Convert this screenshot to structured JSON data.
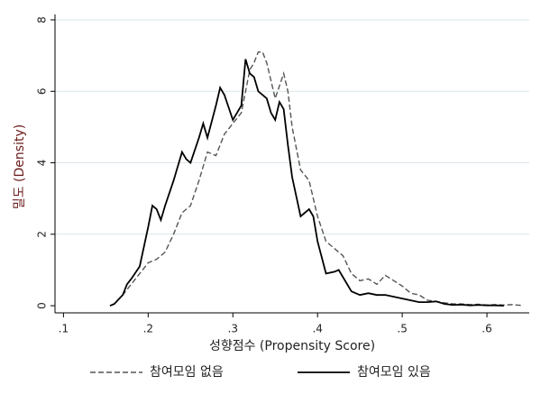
{
  "chart_data": {
    "type": "line",
    "x_label": "성향점수 (Propensity Score)",
    "y_label": "밀도 (Density)",
    "xlim": [
      0.09,
      0.65
    ],
    "ylim": [
      -0.2,
      8
    ],
    "xticks": [
      {
        "value": 0.1,
        "label": ".1"
      },
      {
        "value": 0.2,
        "label": ".2"
      },
      {
        "value": 0.3,
        "label": ".3"
      },
      {
        "value": 0.4,
        "label": ".4"
      },
      {
        "value": 0.5,
        "label": ".5"
      },
      {
        "value": 0.6,
        "label": ".6"
      }
    ],
    "yticks": [
      0,
      2,
      4,
      6,
      8
    ],
    "grid": true,
    "legend": "bottom",
    "series": [
      {
        "name": "참여모임 없음",
        "color": "#555555",
        "dash": "dashed",
        "x": [
          0.155,
          0.16,
          0.17,
          0.18,
          0.19,
          0.2,
          0.21,
          0.22,
          0.23,
          0.24,
          0.25,
          0.26,
          0.27,
          0.28,
          0.29,
          0.3,
          0.31,
          0.32,
          0.325,
          0.33,
          0.335,
          0.34,
          0.35,
          0.36,
          0.365,
          0.37,
          0.38,
          0.39,
          0.4,
          0.41,
          0.42,
          0.43,
          0.44,
          0.45,
          0.46,
          0.47,
          0.48,
          0.49,
          0.5,
          0.51,
          0.52,
          0.53,
          0.54,
          0.55,
          0.56,
          0.57,
          0.58,
          0.59,
          0.6,
          0.61,
          0.62,
          0.63,
          0.64
        ],
        "values": [
          0,
          0.05,
          0.3,
          0.6,
          0.9,
          1.2,
          1.3,
          1.5,
          2.0,
          2.6,
          2.8,
          3.5,
          4.3,
          4.2,
          4.8,
          5.1,
          5.4,
          6.6,
          6.8,
          7.1,
          7.1,
          6.8,
          5.8,
          6.5,
          6.0,
          5.0,
          3.8,
          3.5,
          2.5,
          1.8,
          1.6,
          1.4,
          0.9,
          0.7,
          0.75,
          0.6,
          0.85,
          0.7,
          0.55,
          0.35,
          0.3,
          0.15,
          0.12,
          0.08,
          0.05,
          0.05,
          0.03,
          0.04,
          0.02,
          0.03,
          0.02,
          0.03,
          0.01
        ]
      },
      {
        "name": "참여모임 있음",
        "color": "#000000",
        "dash": "solid",
        "x": [
          0.155,
          0.16,
          0.17,
          0.175,
          0.18,
          0.19,
          0.2,
          0.205,
          0.21,
          0.215,
          0.22,
          0.23,
          0.24,
          0.245,
          0.25,
          0.26,
          0.265,
          0.27,
          0.28,
          0.285,
          0.29,
          0.3,
          0.31,
          0.315,
          0.32,
          0.325,
          0.33,
          0.34,
          0.345,
          0.35,
          0.355,
          0.36,
          0.365,
          0.37,
          0.38,
          0.39,
          0.395,
          0.4,
          0.41,
          0.42,
          0.425,
          0.43,
          0.44,
          0.45,
          0.46,
          0.47,
          0.48,
          0.49,
          0.5,
          0.51,
          0.52,
          0.53,
          0.54,
          0.55,
          0.56,
          0.57,
          0.58,
          0.59,
          0.6,
          0.61,
          0.62
        ],
        "values": [
          0,
          0.05,
          0.3,
          0.6,
          0.75,
          1.1,
          2.2,
          2.8,
          2.7,
          2.4,
          2.8,
          3.5,
          4.3,
          4.1,
          4.0,
          4.7,
          5.1,
          4.7,
          5.6,
          6.1,
          5.9,
          5.2,
          5.6,
          6.9,
          6.5,
          6.4,
          6.0,
          5.8,
          5.4,
          5.2,
          5.7,
          5.5,
          4.5,
          3.6,
          2.5,
          2.7,
          2.5,
          1.8,
          0.9,
          0.95,
          1.0,
          0.8,
          0.4,
          0.3,
          0.35,
          0.3,
          0.3,
          0.25,
          0.2,
          0.15,
          0.1,
          0.1,
          0.12,
          0.05,
          0.02,
          0.03,
          0.01,
          0.02,
          0.01,
          0.01,
          0
        ]
      }
    ]
  }
}
